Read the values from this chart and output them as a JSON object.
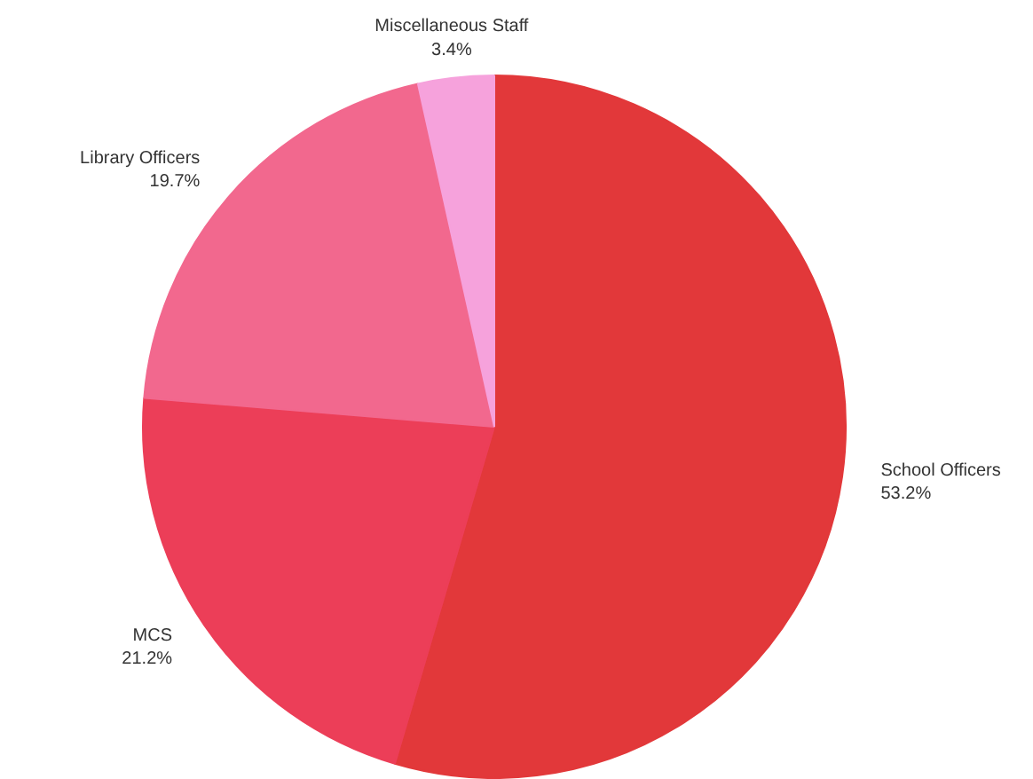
{
  "chart_data": {
    "type": "pie",
    "categories": [
      "School Officers",
      "MCS",
      "Library Officers",
      "Miscellaneous Staff"
    ],
    "values": [
      53.2,
      21.2,
      19.7,
      3.4
    ],
    "colors": [
      "#e2383a",
      "#ec3e58",
      "#f2688e",
      "#f6a2dc"
    ],
    "value_labels": [
      "53.2%",
      "21.2%",
      "19.7%",
      "3.4%"
    ]
  }
}
